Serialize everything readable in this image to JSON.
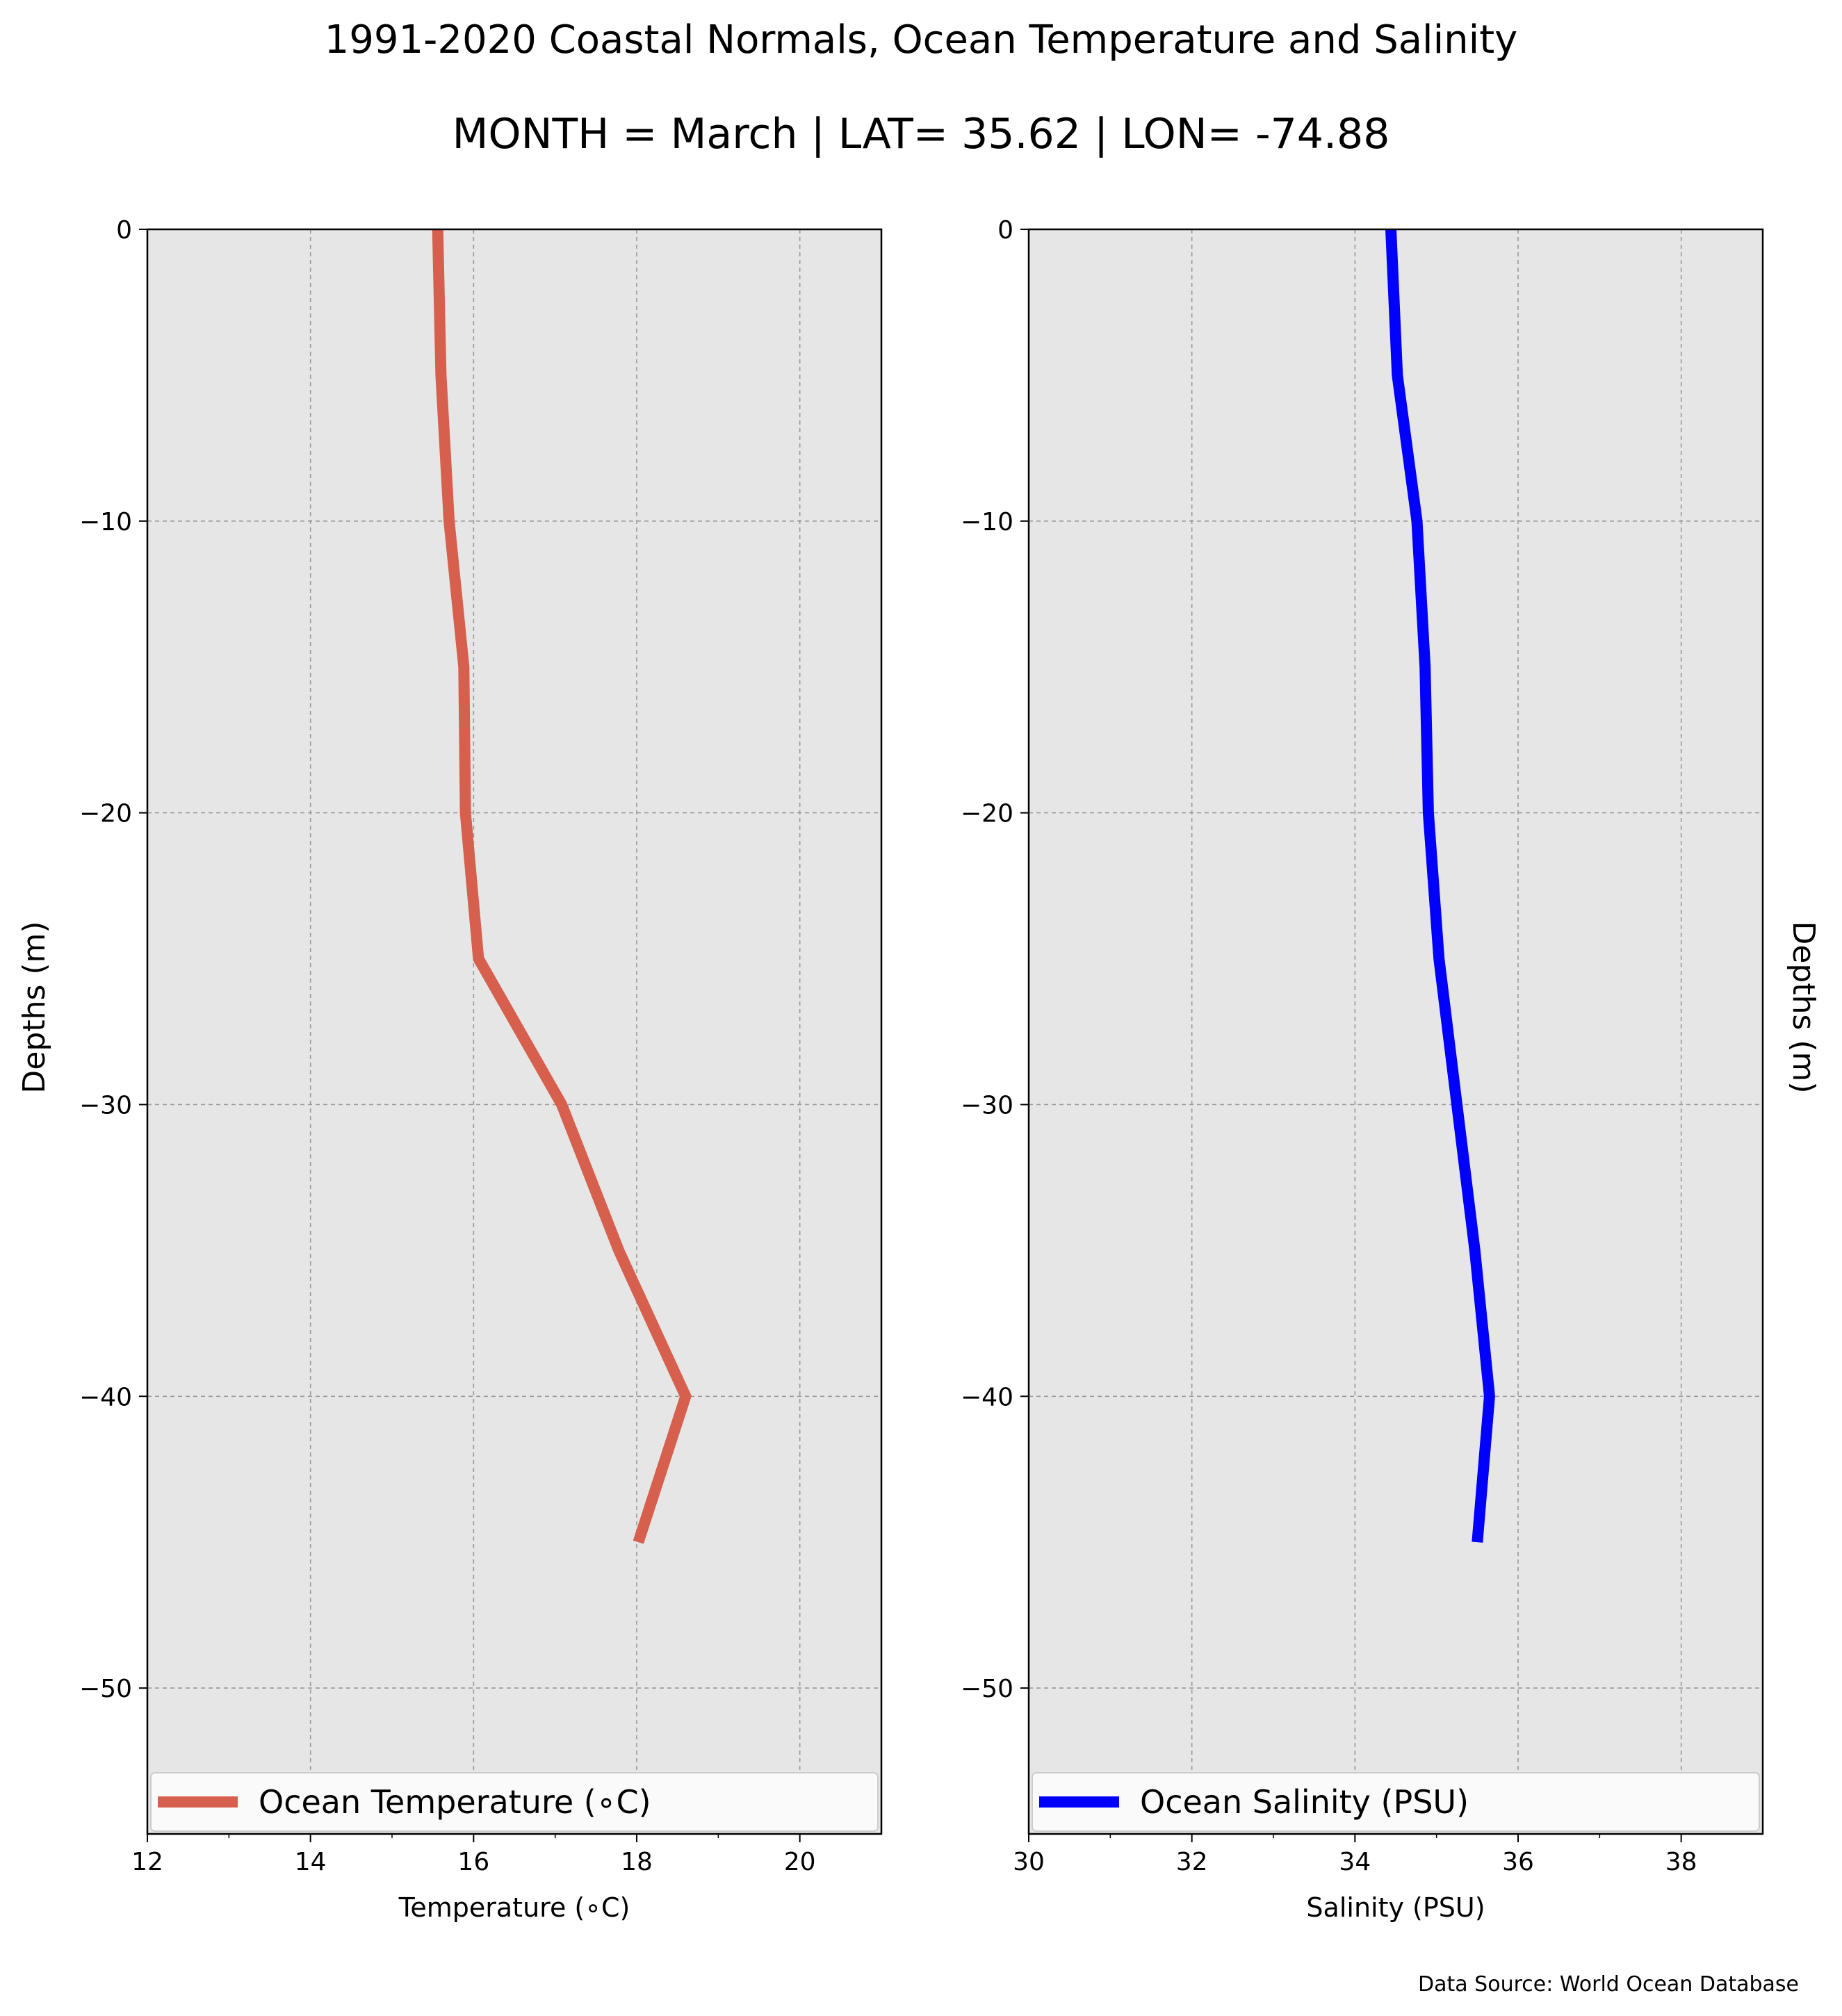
{
  "title": "1991-2020 Coastal Normals, Ocean Temperature and Salinity",
  "subtitle": "MONTH = March | LAT= 35.62 | LON= -74.88",
  "source": "Data Source: World Ocean Database",
  "colors": {
    "background": "#e6e6e6",
    "grid": "#9a9a9a",
    "temperature": "#d65f4d",
    "salinity": "#0000ff"
  },
  "chart_data": [
    {
      "type": "line",
      "xlabel": "Temperature (∘C)",
      "ylabel": "Depths (m)",
      "xlim": [
        12,
        21
      ],
      "ylim": [
        -55,
        0
      ],
      "xticks": [
        12,
        14,
        16,
        18,
        20
      ],
      "xtick_labels": [
        "12",
        "14",
        "16",
        "18",
        "20"
      ],
      "yticks": [
        0,
        -10,
        -20,
        -30,
        -40,
        -50
      ],
      "ytick_labels": [
        "0",
        "−10",
        "−20",
        "−30",
        "−40",
        "−50"
      ],
      "grid": true,
      "legend_position": "bottom",
      "series": [
        {
          "name": "Ocean Temperature (∘C)",
          "color": "#d65f4d",
          "x": [
            15.56,
            15.6,
            15.7,
            15.88,
            15.9,
            16.06,
            17.08,
            17.78,
            18.6,
            18.02
          ],
          "y": [
            0,
            -5,
            -10,
            -15,
            -20,
            -25,
            -30,
            -35,
            -40,
            -45
          ]
        }
      ]
    },
    {
      "type": "line",
      "xlabel": "Salinity (PSU)",
      "ylabel": "Depths (m)",
      "xlim": [
        30,
        39
      ],
      "ylim": [
        -55,
        0
      ],
      "xticks": [
        30,
        32,
        34,
        36,
        38
      ],
      "xtick_labels": [
        "30",
        "32",
        "34",
        "36",
        "38"
      ],
      "yticks": [
        0,
        -10,
        -20,
        -30,
        -40,
        -50
      ],
      "ytick_labels": [
        "0",
        "−10",
        "−20",
        "−30",
        "−40",
        "−50"
      ],
      "grid": true,
      "legend_position": "bottom",
      "series": [
        {
          "name": "Ocean Salinity (PSU)",
          "color": "#0000ff",
          "x": [
            34.44,
            34.52,
            34.76,
            34.86,
            34.9,
            35.03,
            35.25,
            35.47,
            35.65,
            35.5
          ],
          "y": [
            0,
            -5,
            -10,
            -15,
            -20,
            -25,
            -30,
            -35,
            -40,
            -45
          ]
        }
      ]
    }
  ]
}
